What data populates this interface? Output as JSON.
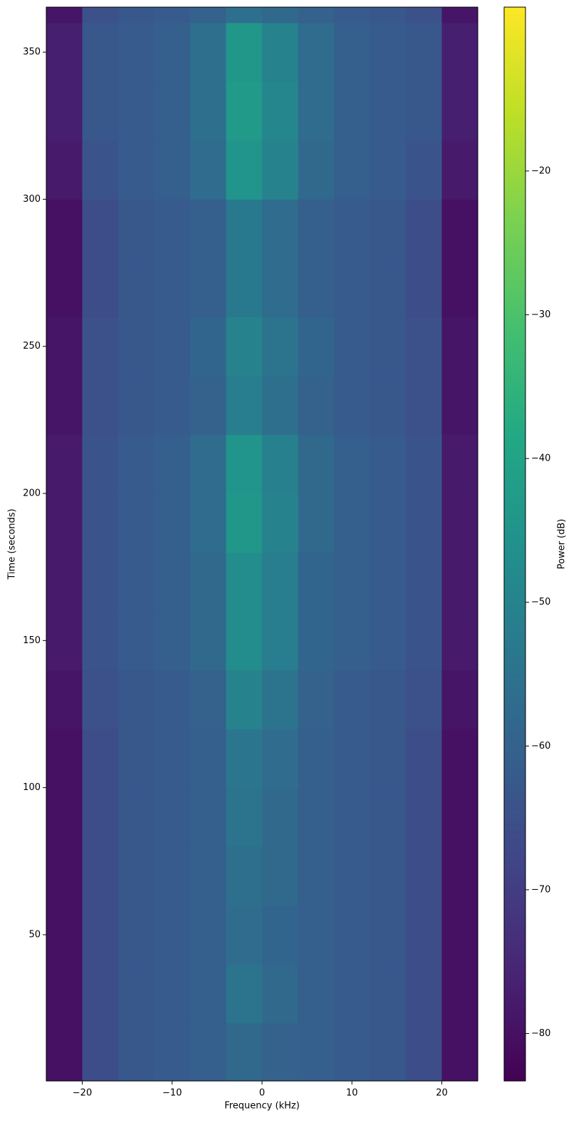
{
  "chart_data": {
    "type": "heatmap",
    "x_label": "Frequency (kHz)",
    "y_label": "Time (seconds)",
    "colorbar_label": "Power (dB)",
    "colormap": "viridis",
    "xlim": [
      -24,
      24
    ],
    "ylim": [
      0.3,
      365.3
    ],
    "zlim": [
      -83.3,
      -8.6
    ],
    "xticks": [
      {
        "value": -20,
        "label": "−20"
      },
      {
        "value": -10,
        "label": "−10"
      },
      0,
      10,
      20
    ],
    "yticks": [
      50,
      100,
      150,
      200,
      250,
      300,
      350
    ],
    "cticks": [
      {
        "value": -80,
        "label": "−80"
      },
      {
        "value": -70,
        "label": "−70"
      },
      {
        "value": -60,
        "label": "−60"
      },
      {
        "value": -50,
        "label": "−50"
      },
      {
        "value": -40,
        "label": "−40"
      },
      {
        "value": -30,
        "label": "−30"
      },
      {
        "value": -20,
        "label": "−20"
      }
    ],
    "x_edges": [
      -24,
      -20,
      -16,
      -12,
      -8,
      -4,
      0,
      4,
      8,
      12,
      16,
      20,
      24
    ],
    "y_edges": [
      0.3,
      20,
      40,
      60,
      80,
      100,
      120,
      140,
      160,
      180,
      200,
      220,
      240,
      260,
      280,
      300,
      320,
      340,
      360,
      365.3
    ],
    "z": [
      [
        -80,
        -66,
        -63,
        -62,
        -61,
        -58,
        -60,
        -61,
        -62,
        -63,
        -66,
        -80
      ],
      [
        -80,
        -66,
        -63,
        -62,
        -61,
        -55,
        -58,
        -61,
        -62,
        -63,
        -66,
        -80
      ],
      [
        -80,
        -66,
        -63,
        -62,
        -61,
        -57,
        -59,
        -61,
        -62,
        -63,
        -66,
        -80
      ],
      [
        -80,
        -66,
        -63,
        -62,
        -61,
        -56,
        -58,
        -61,
        -62,
        -63,
        -66,
        -80
      ],
      [
        -80,
        -66,
        -63,
        -62,
        -61,
        -55,
        -58,
        -61,
        -62,
        -63,
        -66,
        -80
      ],
      [
        -80,
        -66,
        -63,
        -62,
        -61,
        -54,
        -57,
        -61,
        -62,
        -63,
        -66,
        -80
      ],
      [
        -79,
        -65,
        -63,
        -62,
        -60,
        -50,
        -55,
        -60,
        -62,
        -63,
        -65,
        -79
      ],
      [
        -78,
        -64,
        -62,
        -61,
        -58,
        -47,
        -52,
        -59,
        -61,
        -62,
        -64,
        -78
      ],
      [
        -78,
        -64,
        -62,
        -61,
        -58,
        -47,
        -52,
        -59,
        -61,
        -62,
        -64,
        -78
      ],
      [
        -78,
        -64,
        -62,
        -61,
        -57,
        -44,
        -50,
        -58,
        -61,
        -62,
        -64,
        -78
      ],
      [
        -78,
        -64,
        -62,
        -61,
        -57,
        -45,
        -51,
        -58,
        -61,
        -62,
        -64,
        -78
      ],
      [
        -79,
        -65,
        -63,
        -62,
        -60,
        -52,
        -56,
        -60,
        -62,
        -63,
        -65,
        -79
      ],
      [
        -79,
        -65,
        -63,
        -62,
        -59,
        -50,
        -55,
        -59,
        -62,
        -63,
        -65,
        -79
      ],
      [
        -80,
        -66,
        -63,
        -62,
        -61,
        -53,
        -57,
        -61,
        -62,
        -63,
        -66,
        -80
      ],
      [
        -80,
        -66,
        -63,
        -62,
        -61,
        -53,
        -57,
        -61,
        -62,
        -63,
        -66,
        -80
      ],
      [
        -78,
        -64,
        -62,
        -61,
        -57,
        -45,
        -50,
        -58,
        -61,
        -62,
        -64,
        -78
      ],
      [
        -77,
        -63,
        -62,
        -61,
        -56,
        -43,
        -49,
        -57,
        -61,
        -62,
        -63,
        -77
      ],
      [
        -77,
        -63,
        -62,
        -61,
        -56,
        -44,
        -50,
        -57,
        -61,
        -62,
        -63,
        -77
      ],
      [
        -79,
        -65,
        -63,
        -62,
        -60,
        -56,
        -58,
        -60,
        -62,
        -63,
        -65,
        -79
      ]
    ]
  }
}
